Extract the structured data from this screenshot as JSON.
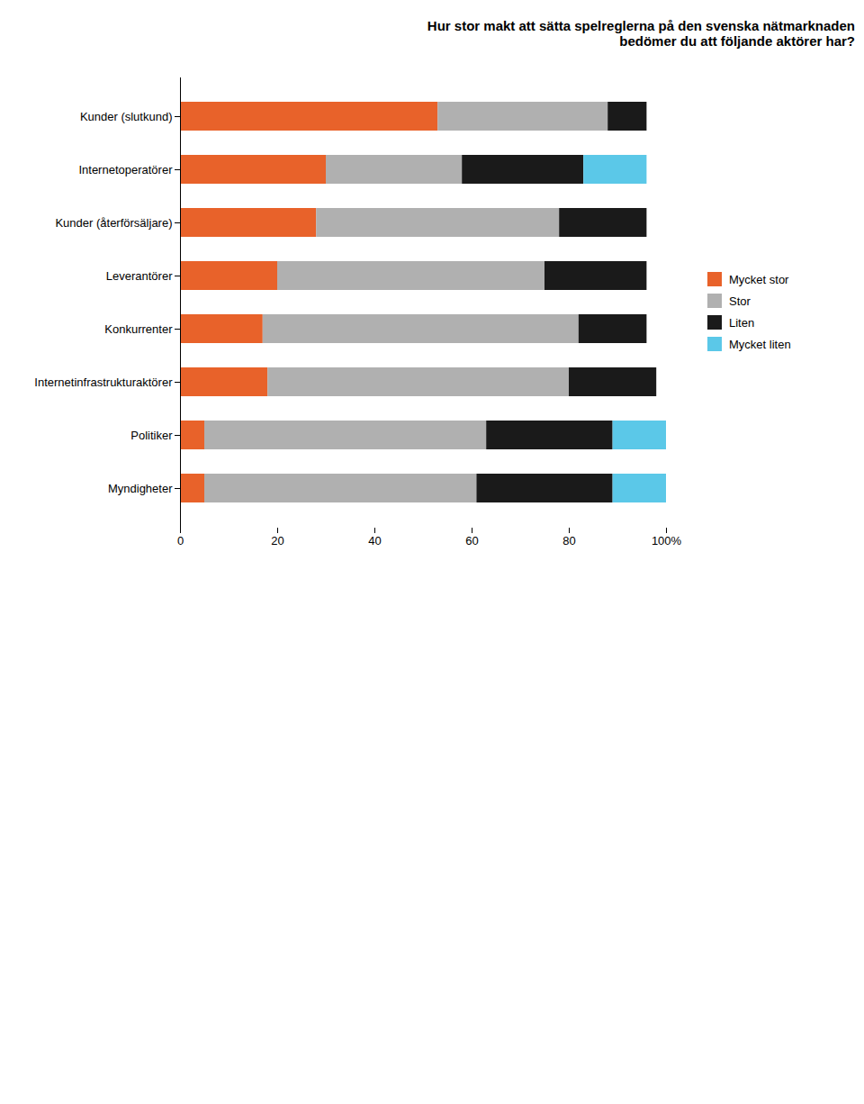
{
  "chart_data": {
    "type": "bar",
    "orientation": "horizontal",
    "stacked": true,
    "title": "Hur stor makt att sätta spelreglerna på den svenska nätmarknaden\nbedömer du att följande aktörer har?",
    "categories": [
      "Kunder (slutkund)",
      "Internetoperatörer",
      "Kunder (återförsäljare)",
      "Leverantörer",
      "Konkurrenter",
      "Internetinfrastrukturaktörer",
      "Politiker",
      "Myndigheter"
    ],
    "series": [
      {
        "name": "Mycket stor",
        "color": "#E8622A",
        "values": [
          53,
          30,
          28,
          20,
          17,
          18,
          5,
          5
        ]
      },
      {
        "name": "Stor",
        "color": "#B0B0B0",
        "values": [
          35,
          28,
          50,
          55,
          65,
          62,
          58,
          56
        ]
      },
      {
        "name": "Liten",
        "color": "#1A1A1A",
        "values": [
          8,
          25,
          18,
          21,
          14,
          18,
          26,
          28
        ]
      },
      {
        "name": "Mycket liten",
        "color": "#5BC8E8",
        "values": [
          0,
          13,
          0,
          0,
          0,
          0,
          11,
          11
        ]
      }
    ],
    "xlim": [
      0,
      100
    ],
    "xticks": [
      0,
      20,
      40,
      60,
      80,
      {
        "value": 100,
        "label": "100%"
      }
    ],
    "grid": false,
    "legend": "right"
  }
}
